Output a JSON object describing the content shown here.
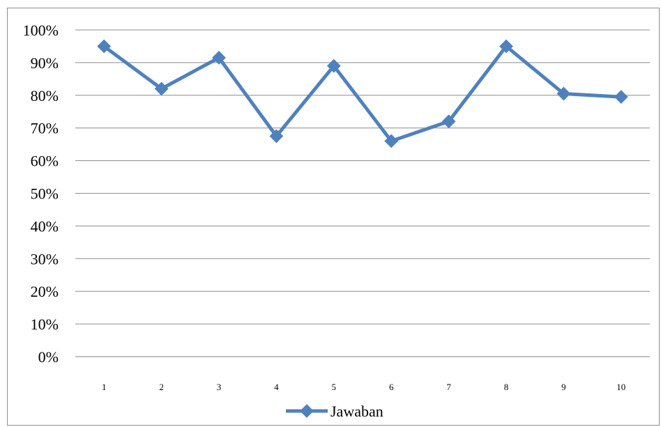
{
  "chart_data": {
    "type": "line",
    "categories": [
      "1",
      "2",
      "3",
      "4",
      "5",
      "6",
      "7",
      "8",
      "9",
      "10"
    ],
    "series": [
      {
        "name": "Jawaban",
        "values": [
          0.95,
          0.82,
          0.915,
          0.675,
          0.89,
          0.66,
          0.72,
          0.95,
          0.805,
          0.795
        ],
        "color": "#4f81bd"
      }
    ],
    "ylim": [
      0,
      1
    ],
    "yticks": [
      "0%",
      "10%",
      "20%",
      "30%",
      "40%",
      "50%",
      "60%",
      "70%",
      "80%",
      "90%",
      "100%"
    ],
    "grid": true,
    "legend_position": "bottom"
  }
}
